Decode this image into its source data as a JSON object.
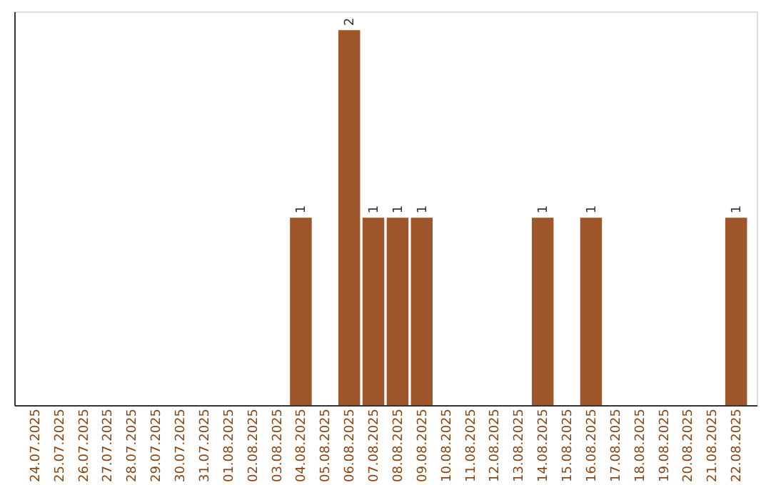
{
  "chart_data": {
    "type": "bar",
    "categories": [
      "24.07.2025",
      "25.07.2025",
      "26.07.2025",
      "27.07.2025",
      "28.07.2025",
      "29.07.2025",
      "30.07.2025",
      "31.07.2025",
      "01.08.2025",
      "02.08.2025",
      "03.08.2025",
      "04.08.2025",
      "05.08.2025",
      "06.08.2025",
      "07.08.2025",
      "08.08.2025",
      "09.08.2025",
      "10.08.2025",
      "11.08.2025",
      "12.08.2025",
      "13.08.2025",
      "14.08.2025",
      "15.08.2025",
      "16.08.2025",
      "17.08.2025",
      "18.08.2025",
      "19.08.2025",
      "20.08.2025",
      "21.08.2025",
      "22.08.2025"
    ],
    "values": [
      0,
      0,
      0,
      0,
      0,
      0,
      0,
      0,
      0,
      0,
      0,
      1,
      0,
      2,
      1,
      1,
      1,
      0,
      0,
      0,
      0,
      1,
      0,
      1,
      0,
      0,
      0,
      0,
      0,
      1
    ],
    "value_labels": [
      null,
      null,
      null,
      null,
      null,
      null,
      null,
      null,
      null,
      null,
      null,
      "1",
      null,
      "2",
      "1",
      "1",
      "1",
      null,
      null,
      null,
      null,
      "1",
      null,
      "1",
      null,
      null,
      null,
      null,
      null,
      "1"
    ],
    "color": "#a0562b",
    "ylim": [
      0,
      2.1
    ],
    "tick_labels": "x",
    "grid": false
  }
}
